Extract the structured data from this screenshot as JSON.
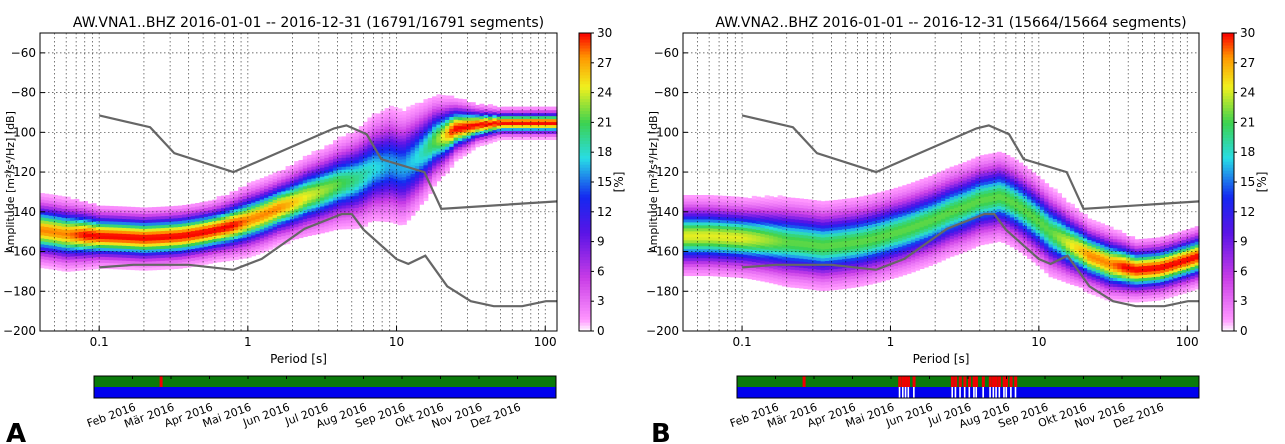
{
  "figure": {
    "panel_a_label": "A",
    "panel_b_label": "B"
  },
  "chart_data": [
    {
      "type": "heatmap",
      "panel": "A",
      "title": "AW.VNA1..BHZ   2016-01-01 -- 2016-12-31   (16791/16791 segments)",
      "xlabel": "Period [s]",
      "ylabel": "Amplitude [m²/s⁴/Hz] [dB]",
      "x_scale": "log",
      "xlim": [
        0.04,
        120
      ],
      "x_ticks": [
        0.1,
        1,
        10,
        100
      ],
      "x_tick_labels": [
        "0.1",
        "1",
        "10",
        "100"
      ],
      "ylim": [
        -200,
        -50
      ],
      "y_ticks": [
        -200,
        -180,
        -160,
        -140,
        -120,
        -100,
        -80,
        -60
      ],
      "grid": true,
      "colorbar": {
        "label": "[%]",
        "min": 0,
        "max": 30,
        "ticks": [
          0,
          3,
          6,
          9,
          12,
          15,
          18,
          21,
          24,
          27,
          30
        ],
        "colormap": "pqlx"
      },
      "noise_models": {
        "high": {
          "period": [
            0.1,
            0.22,
            0.32,
            0.8,
            3.8,
            4.6,
            6.3,
            7.9,
            15.4,
            20,
            354
          ],
          "db": [
            -91.5,
            -97.4,
            -110.5,
            -120,
            -98,
            -96.5,
            -101,
            -113.5,
            -120,
            -138.5,
            -126
          ]
        },
        "low": {
          "period": [
            0.1,
            0.17,
            0.4,
            0.8,
            1.24,
            2.4,
            4.3,
            5,
            6,
            10,
            12,
            15.6,
            21.9,
            31.6,
            45,
            70,
            101,
            120
          ],
          "db": [
            -168,
            -166.7,
            -166.7,
            -169.2,
            -163.7,
            -148.6,
            -141.1,
            -141.1,
            -149,
            -163.8,
            -166.2,
            -162.1,
            -177.5,
            -185,
            -187.5,
            -187.5,
            -185,
            -185
          ]
        }
      },
      "density_ridge": {
        "period": [
          0.04,
          0.06,
          0.1,
          0.2,
          0.35,
          0.6,
          1,
          1.6,
          2.5,
          4,
          5.5,
          7,
          9,
          11,
          14,
          18,
          25,
          35,
          50,
          70,
          100,
          120
        ],
        "mode_db": [
          -149,
          -151,
          -152,
          -153,
          -152,
          -149,
          -144,
          -138,
          -132,
          -126,
          -123,
          -118,
          -116,
          -118,
          -112,
          -104,
          -98,
          -96,
          -95,
          -95,
          -95,
          -95
        ],
        "spread_db": [
          7,
          7,
          6,
          6,
          6,
          6,
          7,
          7,
          8,
          9,
          10,
          11,
          12,
          12,
          11,
          9,
          6,
          4,
          3,
          3,
          3,
          3
        ]
      },
      "availability": {
        "months": [
          "Feb 2016",
          "Mär 2016",
          "Apr 2016",
          "Mai 2016",
          "Jun 2016",
          "Jul 2016",
          "Aug 2016",
          "Sep 2016",
          "Okt 2016",
          "Nov 2016",
          "Dez 2016"
        ],
        "gaps": [
          0.142
        ]
      }
    },
    {
      "type": "heatmap",
      "panel": "B",
      "title": "AW.VNA2..BHZ   2016-01-01 -- 2016-12-31   (15664/15664 segments)",
      "xlabel": "Period [s]",
      "ylabel": "Amplitude [m²/s⁴/Hz] [dB]",
      "x_scale": "log",
      "xlim": [
        0.04,
        120
      ],
      "x_ticks": [
        0.1,
        1,
        10,
        100
      ],
      "x_tick_labels": [
        "0.1",
        "1",
        "10",
        "100"
      ],
      "ylim": [
        -200,
        -50
      ],
      "y_ticks": [
        -200,
        -180,
        -160,
        -140,
        -120,
        -100,
        -80,
        -60
      ],
      "grid": true,
      "colorbar": {
        "label": "[%]",
        "min": 0,
        "max": 30,
        "ticks": [
          0,
          3,
          6,
          9,
          12,
          15,
          18,
          21,
          24,
          27,
          30
        ],
        "colormap": "pqlx"
      },
      "noise_models": {
        "high": {
          "period": [
            0.1,
            0.22,
            0.32,
            0.8,
            3.8,
            4.6,
            6.3,
            7.9,
            15.4,
            20,
            354
          ],
          "db": [
            -91.5,
            -97.4,
            -110.5,
            -120,
            -98,
            -96.5,
            -101,
            -113.5,
            -120,
            -138.5,
            -126
          ]
        },
        "low": {
          "period": [
            0.1,
            0.17,
            0.4,
            0.8,
            1.24,
            2.4,
            4.3,
            5,
            6,
            10,
            12,
            15.6,
            21.9,
            31.6,
            45,
            70,
            101,
            120
          ],
          "db": [
            -168,
            -166.7,
            -166.7,
            -169.2,
            -163.7,
            -148.6,
            -141.1,
            -141.1,
            -149,
            -163.8,
            -166.2,
            -162.1,
            -177.5,
            -185,
            -187.5,
            -187.5,
            -185,
            -185
          ]
        }
      },
      "density_ridge": {
        "period": [
          0.04,
          0.06,
          0.1,
          0.2,
          0.35,
          0.6,
          1,
          1.6,
          2.5,
          4,
          5.5,
          7,
          9,
          12,
          16,
          22,
          30,
          45,
          65,
          90,
          120
        ],
        "mode_db": [
          -152,
          -152,
          -153,
          -155,
          -157,
          -155,
          -151,
          -146,
          -140,
          -134,
          -132,
          -136,
          -142,
          -150,
          -156,
          -162,
          -166,
          -169,
          -168,
          -165,
          -162
        ],
        "spread_db": [
          8,
          8,
          8,
          9,
          9,
          9,
          9,
          9,
          9,
          9,
          9,
          9,
          9,
          9,
          8,
          7,
          7,
          6,
          6,
          6,
          6
        ]
      },
      "availability": {
        "months": [
          "Feb 2016",
          "Mär 2016",
          "Apr 2016",
          "Mai 2016",
          "Jun 2016",
          "Jul 2016",
          "Aug 2016",
          "Sep 2016",
          "Okt 2016",
          "Nov 2016",
          "Dez 2016"
        ],
        "gaps": [
          0.142,
          0.349,
          0.356,
          0.362,
          0.368,
          0.38,
          0.463,
          0.47,
          0.48,
          0.49,
          0.5,
          0.51,
          0.515,
          0.53,
          0.545,
          0.552,
          0.558,
          0.565,
          0.575,
          0.58,
          0.59,
          0.6
        ]
      }
    }
  ]
}
